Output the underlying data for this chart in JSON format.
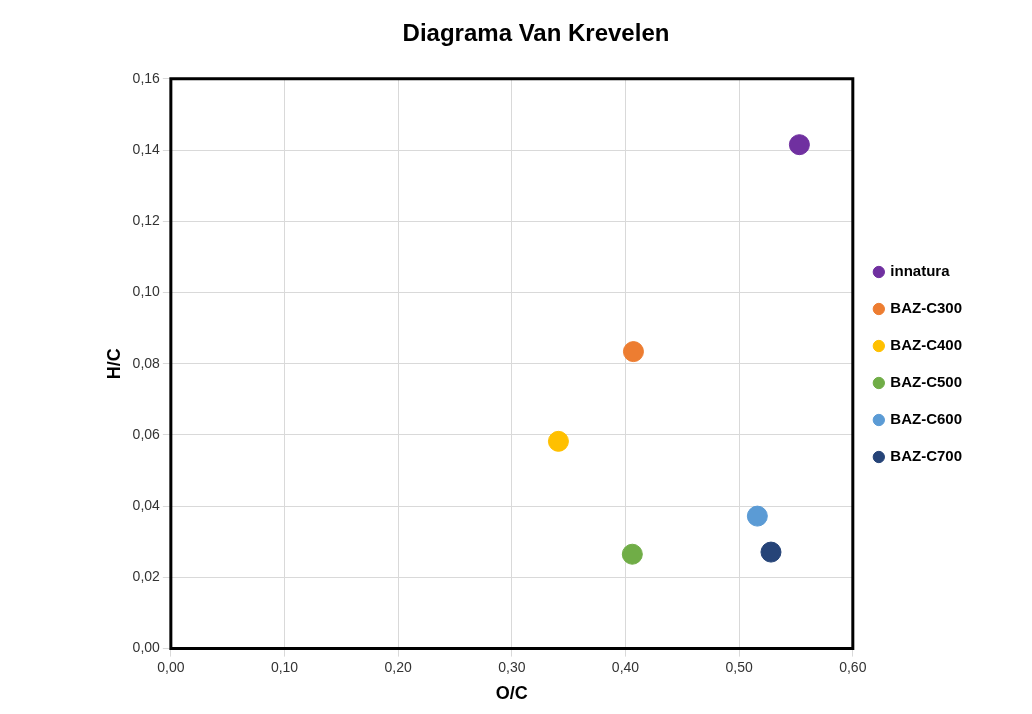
{
  "chart_data": {
    "type": "scatter",
    "title": "Diagrama Van Krevelen",
    "xlabel": "O/C",
    "ylabel": "H/C",
    "xlim": [
      0,
      0.6
    ],
    "xticks": [
      {
        "value": 0,
        "label": "0,00"
      },
      {
        "value": 0.1,
        "label": "0,10"
      },
      {
        "value": 0.2,
        "label": "0,20"
      },
      {
        "value": 0.3,
        "label": "0,30"
      },
      {
        "value": 0.4,
        "label": "0,40"
      },
      {
        "value": 0.5,
        "label": "0,50"
      },
      {
        "value": 0.6,
        "label": "0,60"
      }
    ],
    "ylim": [
      0,
      0.16
    ],
    "yticks": [
      {
        "value": 0,
        "label": "0,00"
      },
      {
        "value": 0.02,
        "label": "0,02"
      },
      {
        "value": 0.04,
        "label": "0,04"
      },
      {
        "value": 0.06,
        "label": "0,06"
      },
      {
        "value": 0.08,
        "label": "0,08"
      },
      {
        "value": 0.1,
        "label": "0,10"
      },
      {
        "value": 0.12,
        "label": "0,12"
      },
      {
        "value": 0.14,
        "label": "0,14"
      },
      {
        "value": 0.16,
        "label": "0,16"
      }
    ],
    "grid": true,
    "legend": "right",
    "marker": "circle",
    "series": [
      {
        "name": "innatura",
        "color": "#7030a0",
        "x": [
          0.553
        ],
        "values": [
          0.1415
        ]
      },
      {
        "name": "BAZ-C300",
        "color": "#ed7d31",
        "x": [
          0.407
        ],
        "values": [
          0.0834
        ]
      },
      {
        "name": "BAZ-C400",
        "color": "#ffc000",
        "x": [
          0.341
        ],
        "values": [
          0.0582
        ]
      },
      {
        "name": "BAZ-C500",
        "color": "#70ad47",
        "x": [
          0.406
        ],
        "values": [
          0.0265
        ]
      },
      {
        "name": "BAZ-C600",
        "color": "#5b9bd5",
        "x": [
          0.516
        ],
        "values": [
          0.0372
        ]
      },
      {
        "name": "BAZ-C700",
        "color": "#264478",
        "x": [
          0.528
        ],
        "values": [
          0.0271
        ]
      }
    ]
  }
}
